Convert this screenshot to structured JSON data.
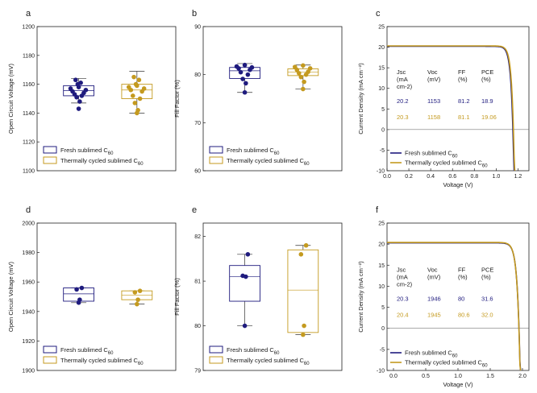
{
  "colors": {
    "fresh": "#1f1b7e",
    "cycled": "#c49a1f"
  },
  "legend_labels": {
    "fresh": "Fresh sublimed C60",
    "cycled": "Thermally cycled sublimed C60"
  },
  "chart_data": [
    {
      "id": "a",
      "type": "box",
      "letter": "a",
      "ylabel": "Open Circuit Voltage (mV)",
      "ylim": [
        1100,
        1200
      ],
      "yticks": [
        "1100",
        "1120",
        "1140",
        "1160",
        "1180",
        "1200"
      ],
      "series": [
        {
          "key": "fresh",
          "box": [
            1152,
            1155.5,
            1159
          ],
          "whisk": [
            1147,
            1164
          ],
          "points": [
            1143,
            1148,
            1151,
            1152,
            1153,
            1154,
            1155,
            1156,
            1157,
            1158,
            1160,
            1161,
            1163
          ]
        },
        {
          "key": "cycled",
          "box": [
            1150,
            1156,
            1160
          ],
          "whisk": [
            1140,
            1169
          ],
          "points": [
            1140,
            1142,
            1147,
            1150,
            1152,
            1155,
            1156,
            1157,
            1158,
            1159,
            1160,
            1163,
            1165
          ]
        }
      ]
    },
    {
      "id": "b",
      "type": "box",
      "letter": "b",
      "ylabel": "Fill Factor (%)",
      "ylim": [
        60,
        90
      ],
      "yticks": [
        "60",
        "70",
        "80",
        "90"
      ],
      "series": [
        {
          "key": "fresh",
          "box": [
            79.2,
            80.8,
            81.5
          ],
          "whisk": [
            76.3,
            82.3
          ],
          "points": [
            76.3,
            78.2,
            79.1,
            80,
            80.5,
            81,
            81.3,
            81.5,
            81.7,
            82
          ]
        },
        {
          "key": "cycled",
          "box": [
            79.8,
            80.5,
            81.2
          ],
          "whisk": [
            77,
            82
          ],
          "points": [
            77,
            78.5,
            79.5,
            80,
            80.3,
            80.6,
            81,
            81.3,
            81.6,
            81.9
          ]
        }
      ]
    },
    {
      "id": "d",
      "type": "box",
      "letter": "d",
      "ylabel": "Open Circuit Voltage (mV)",
      "ylim": [
        1900,
        2000
      ],
      "yticks": [
        "1900",
        "1920",
        "1940",
        "1960",
        "1980",
        "2000"
      ],
      "series": [
        {
          "key": "fresh",
          "box": [
            1947,
            1952,
            1956
          ],
          "whisk": [
            1946,
            1956
          ],
          "points": [
            1946,
            1948,
            1955,
            1956
          ]
        },
        {
          "key": "cycled",
          "box": [
            1948,
            1951,
            1954
          ],
          "whisk": [
            1945,
            1954
          ],
          "points": [
            1945,
            1948,
            1953,
            1954
          ]
        }
      ]
    },
    {
      "id": "e",
      "type": "box",
      "letter": "e",
      "ylabel": "Fill Factor (%)",
      "ylim": [
        79,
        82.3
      ],
      "yticks": [
        "79",
        "80",
        "81",
        "82"
      ],
      "series": [
        {
          "key": "fresh",
          "box": [
            80.55,
            81.1,
            81.35
          ],
          "whisk": [
            80,
            81.6
          ],
          "points": [
            80,
            81.1,
            81.12,
            81.6
          ]
        },
        {
          "key": "cycled",
          "box": [
            79.85,
            80.8,
            81.7
          ],
          "whisk": [
            79.8,
            81.8
          ],
          "points": [
            79.8,
            80,
            81.6,
            81.8
          ]
        }
      ]
    },
    {
      "id": "c",
      "type": "line",
      "letter": "c",
      "xlabel": "Voltage (V)",
      "ylabel": "Current Density (mA cm⁻²)",
      "xlim": [
        0,
        1.3
      ],
      "ylim": [
        -10,
        25
      ],
      "xticks": [
        "0.0",
        "0.2",
        "0.4",
        "0.6",
        "0.8",
        "1.0",
        "1.2"
      ],
      "yticks": [
        "-10",
        "-5",
        "0",
        "5",
        "10",
        "15",
        "20",
        "25"
      ],
      "series": [
        {
          "key": "fresh",
          "jsc": 20.2,
          "voc": 1.153,
          "ff": 81.2
        },
        {
          "key": "cycled",
          "jsc": 20.3,
          "voc": 1.158,
          "ff": 81.1
        }
      ],
      "table": {
        "headers": [
          "Jsc (mA cm-2)",
          "Voc (mV)",
          "FF (%)",
          "PCE (%)"
        ],
        "rows": [
          {
            "key": "fresh",
            "cells": [
              "20.2",
              "1153",
              "81.2",
              "18.9"
            ]
          },
          {
            "key": "cycled",
            "cells": [
              "20.3",
              "1158",
              "81.1",
              "19.06"
            ]
          }
        ]
      }
    },
    {
      "id": "f",
      "type": "line",
      "letter": "f",
      "xlabel": "Voltage (V)",
      "ylabel": "Current Density (mA cm⁻²)",
      "xlim": [
        -0.1,
        2.1
      ],
      "ylim": [
        -10,
        25
      ],
      "xticks": [
        "0.0",
        "0.5",
        "1.0",
        "1.5",
        "2.0"
      ],
      "yticks": [
        "-10",
        "-5",
        "0",
        "5",
        "10",
        "15",
        "20",
        "25"
      ],
      "series": [
        {
          "key": "fresh",
          "jsc": 20.3,
          "voc": 1.946,
          "ff": 80
        },
        {
          "key": "cycled",
          "jsc": 20.4,
          "voc": 1.945,
          "ff": 80.6
        }
      ],
      "table": {
        "headers": [
          "Jsc (mA cm-2)",
          "Voc (mV)",
          "FF (%)",
          "PCE (%)"
        ],
        "rows": [
          {
            "key": "fresh",
            "cells": [
              "20.3",
              "1946",
              "80",
              "31.6"
            ]
          },
          {
            "key": "cycled",
            "cells": [
              "20.4",
              "1945",
              "80.6",
              "32.0"
            ]
          }
        ]
      }
    }
  ]
}
